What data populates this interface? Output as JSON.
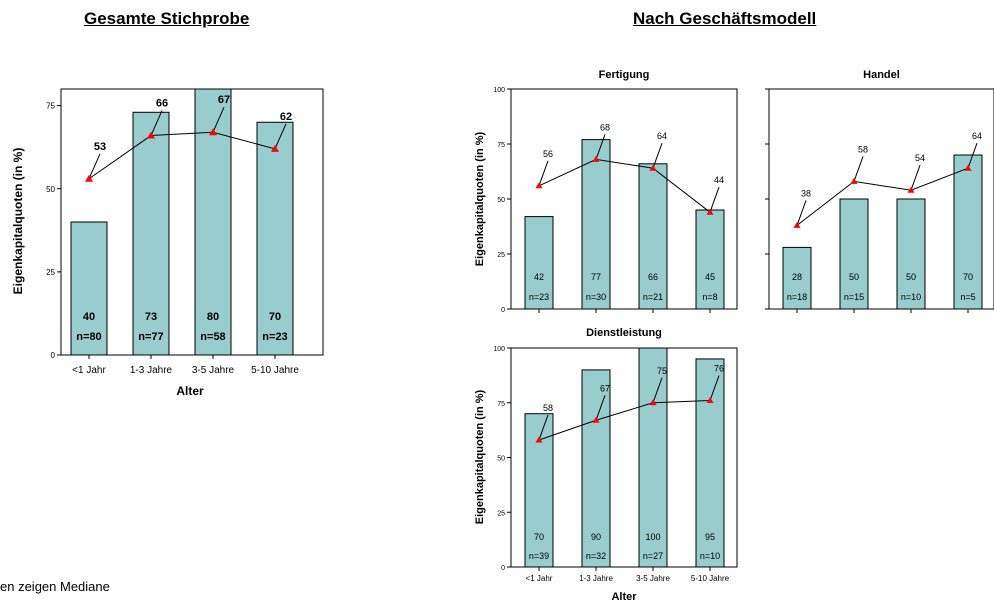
{
  "headings": {
    "left": "Gesamte Stichprobe",
    "right": "Nach Geschäftsmodell"
  },
  "footnote": "en zeigen Mediane",
  "colors": {
    "bar": "#99cccc",
    "marker": "#ff0000",
    "line": "#000000"
  },
  "chart_data": [
    {
      "type": "bar",
      "title": "",
      "xlabel": "Alter",
      "ylabel": "Eigenkapitalquoten (in %)",
      "ylim": [
        0,
        80
      ],
      "yticks": [
        0,
        25,
        50,
        75
      ],
      "categories": [
        "<1 Jahr",
        "1-3 Jahre",
        "3-5 Jahre",
        "5-10 Jahre"
      ],
      "values": [
        40,
        73,
        80,
        70
      ],
      "n": [
        "n=80",
        "n=77",
        "n=58",
        "n=23"
      ],
      "medians": [
        53,
        66,
        67,
        62
      ]
    },
    {
      "type": "bar",
      "title": "Fertigung",
      "xlabel": "",
      "ylabel": "Eigenkapitalquoten (in %)",
      "ylim": [
        0,
        100
      ],
      "yticks": [
        0,
        25,
        50,
        75,
        100
      ],
      "categories": [
        "<1 Jahr",
        "1-3 Jahre",
        "3-5 Jahre",
        "5-10 Jahre"
      ],
      "values": [
        42,
        77,
        66,
        45
      ],
      "n": [
        "n=23",
        "n=30",
        "n=21",
        "n=8"
      ],
      "medians": [
        56,
        68,
        64,
        44
      ]
    },
    {
      "type": "bar",
      "title": "Handel",
      "xlabel": "",
      "ylabel": "",
      "ylim": [
        0,
        100
      ],
      "yticks": [
        0,
        25,
        50,
        75,
        100
      ],
      "categories": [
        "<1 Jahr",
        "1-3 Jahre",
        "3-5 Jahre",
        "5-10 Jahre"
      ],
      "values": [
        28,
        50,
        50,
        70
      ],
      "n": [
        "n=18",
        "n=15",
        "n=10",
        "n=5"
      ],
      "medians": [
        38,
        58,
        54,
        64
      ]
    },
    {
      "type": "bar",
      "title": "Dienstleistung",
      "xlabel": "Alter",
      "ylabel": "Eigenkapitalquoten (in %)",
      "ylim": [
        0,
        100
      ],
      "yticks": [
        0,
        25,
        50,
        75,
        100
      ],
      "categories": [
        "<1 Jahr",
        "1-3 Jahre",
        "3-5 Jahre",
        "5-10 Jahre"
      ],
      "values": [
        70,
        90,
        100,
        95
      ],
      "n": [
        "n=39",
        "n=32",
        "n=27",
        "n=10"
      ],
      "medians": [
        58,
        67,
        75,
        76
      ]
    }
  ]
}
